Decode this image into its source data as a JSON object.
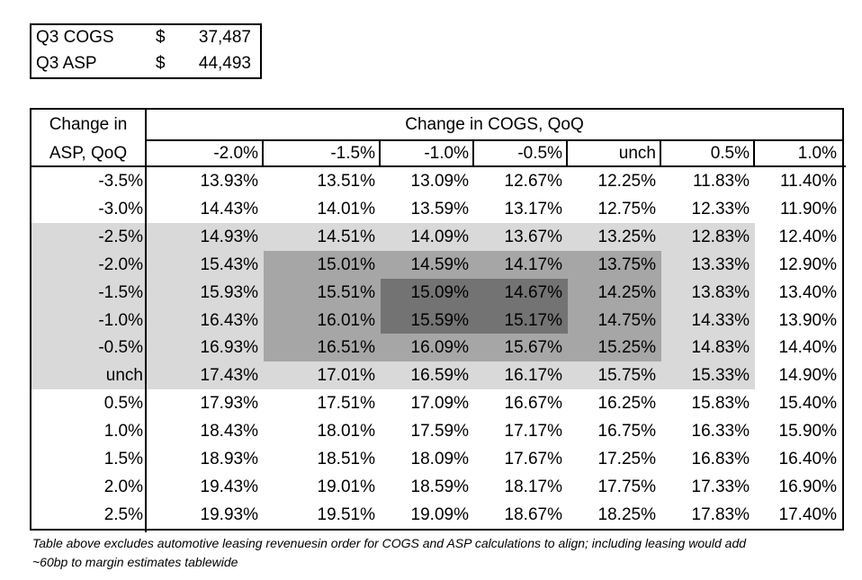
{
  "summary": {
    "rows": [
      {
        "label": "Q3 COGS",
        "currency": "$",
        "value": "37,487"
      },
      {
        "label": "Q3 ASP",
        "currency": "$",
        "value": "44,493"
      }
    ]
  },
  "chart_data": {
    "type": "table",
    "title": "Change in COGS, QoQ",
    "row_header": [
      "Change in",
      "ASP, QoQ"
    ],
    "columns": [
      "-2.0%",
      "-1.5%",
      "-1.0%",
      "-0.5%",
      "unch",
      "0.5%",
      "1.0%"
    ],
    "rows": [
      "-3.5%",
      "-3.0%",
      "-2.5%",
      "-2.0%",
      "-1.5%",
      "-1.0%",
      "-0.5%",
      "unch",
      "0.5%",
      "1.0%",
      "1.5%",
      "2.0%",
      "2.5%"
    ],
    "values": [
      [
        "13.93%",
        "13.51%",
        "13.09%",
        "12.67%",
        "12.25%",
        "11.83%",
        "11.40%"
      ],
      [
        "14.43%",
        "14.01%",
        "13.59%",
        "13.17%",
        "12.75%",
        "12.33%",
        "11.90%"
      ],
      [
        "14.93%",
        "14.51%",
        "14.09%",
        "13.67%",
        "13.25%",
        "12.83%",
        "12.40%"
      ],
      [
        "15.43%",
        "15.01%",
        "14.59%",
        "14.17%",
        "13.75%",
        "13.33%",
        "12.90%"
      ],
      [
        "15.93%",
        "15.51%",
        "15.09%",
        "14.67%",
        "14.25%",
        "13.83%",
        "13.40%"
      ],
      [
        "16.43%",
        "16.01%",
        "15.59%",
        "15.17%",
        "14.75%",
        "14.33%",
        "13.90%"
      ],
      [
        "16.93%",
        "16.51%",
        "16.09%",
        "15.67%",
        "15.25%",
        "14.83%",
        "14.40%"
      ],
      [
        "17.43%",
        "17.01%",
        "16.59%",
        "16.17%",
        "15.75%",
        "15.33%",
        "14.90%"
      ],
      [
        "17.93%",
        "17.51%",
        "17.09%",
        "16.67%",
        "16.25%",
        "15.83%",
        "15.40%"
      ],
      [
        "18.43%",
        "18.01%",
        "17.59%",
        "17.17%",
        "16.75%",
        "16.33%",
        "15.90%"
      ],
      [
        "18.93%",
        "18.51%",
        "18.09%",
        "17.67%",
        "17.25%",
        "16.83%",
        "16.40%"
      ],
      [
        "19.43%",
        "19.01%",
        "18.59%",
        "18.17%",
        "17.75%",
        "17.33%",
        "16.90%"
      ],
      [
        "19.93%",
        "19.51%",
        "19.09%",
        "18.67%",
        "18.25%",
        "17.83%",
        "17.40%"
      ]
    ],
    "highlight_bands": [
      {
        "rows": [
          "-2.5%",
          "unch"
        ],
        "columns": [
          "-2.0%",
          "0.5%"
        ],
        "color": "#d9d9d9"
      },
      {
        "rows": [
          "-2.0%",
          "-0.5%"
        ],
        "columns": [
          "-1.5%",
          "unch"
        ],
        "color": "#a6a6a6"
      },
      {
        "rows": [
          "-1.5%",
          "-1.0%"
        ],
        "columns": [
          "-1.0%",
          "-0.5%"
        ],
        "color": "#737373"
      }
    ]
  },
  "footnote": {
    "line1": "Table above excludes automotive leasing revenuesin order for COGS and ASP calculations to align; including leasing would add",
    "line2": "~60bp to margin estimates tablewide"
  }
}
